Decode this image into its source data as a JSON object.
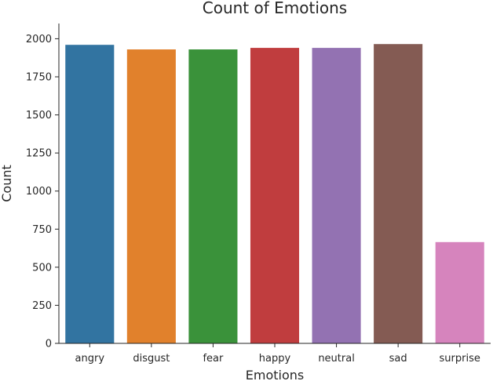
{
  "chart_data": {
    "type": "bar",
    "title": "Count of Emotions",
    "xlabel": "Emotions",
    "ylabel": "Count",
    "categories": [
      "angry",
      "disgust",
      "fear",
      "happy",
      "neutral",
      "sad",
      "surprise"
    ],
    "values": [
      1960,
      1930,
      1930,
      1940,
      1940,
      1965,
      665
    ],
    "colors": [
      "#3274a1",
      "#e1812c",
      "#3a923a",
      "#c03d3e",
      "#9372b2",
      "#845b53",
      "#d684bd"
    ],
    "ylim": [
      0,
      2100
    ],
    "yticks": [
      0,
      250,
      500,
      750,
      1000,
      1250,
      1500,
      1750,
      2000
    ],
    "grid": false,
    "legend": "none"
  }
}
